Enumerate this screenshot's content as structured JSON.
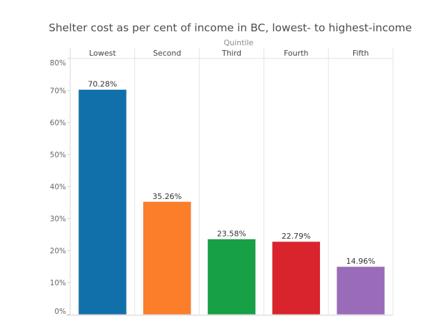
{
  "chart_data": {
    "type": "bar",
    "title": "Shelter cost as per cent of income in BC, lowest- to highest-income",
    "column_header": "Quintile",
    "categories": [
      "Lowest",
      "Second",
      "Third",
      "Fourth",
      "Fifth"
    ],
    "values": [
      70.28,
      35.26,
      23.58,
      22.79,
      14.96
    ],
    "data_labels": [
      "70.28%",
      "35.26%",
      "23.58%",
      "22.79%",
      "14.96%"
    ],
    "colors": [
      "#1170aa",
      "#fc7d2a",
      "#17a046",
      "#d9232d",
      "#9a6bb8"
    ],
    "ylim": [
      0,
      80
    ],
    "yticks": [
      0,
      10,
      20,
      30,
      40,
      50,
      60,
      70,
      80
    ],
    "ytick_labels": [
      "0%",
      "10%",
      "20%",
      "30%",
      "40%",
      "50%",
      "60%",
      "70%",
      "80%"
    ],
    "xlabel": "",
    "ylabel": "",
    "grid": false,
    "legend": "none"
  }
}
